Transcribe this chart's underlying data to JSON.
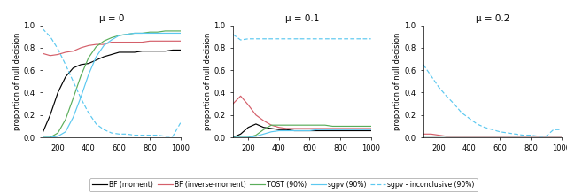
{
  "title_mu0": "μ = 0",
  "title_mu01": "μ = 0.1",
  "title_mu02": "μ = 0.2",
  "ylabel": "proportion of null decision",
  "xlim": [
    100,
    1000
  ],
  "ylim": [
    0,
    1
  ],
  "xticks": [
    200,
    400,
    600,
    800,
    1000
  ],
  "yticks": [
    0.0,
    0.2,
    0.4,
    0.6,
    0.8,
    1.0
  ],
  "colors": {
    "BF_moment": "#000000",
    "BF_inv_moment": "#d45f6a",
    "TOST": "#5aad5a",
    "sgpv": "#5bc8f0",
    "sgpv_inconclusive": "#5bc8f0"
  },
  "legend_labels": [
    "BF (moment)",
    "BF (inverse-moment)",
    "TOST (90%)",
    "sgpv (90%)",
    "sgpv - inconclusive (90%)"
  ],
  "mu0": {
    "x": [
      100,
      150,
      200,
      250,
      300,
      350,
      400,
      450,
      500,
      550,
      600,
      650,
      700,
      750,
      800,
      850,
      900,
      950,
      1000
    ],
    "BF_moment": [
      0.04,
      0.2,
      0.4,
      0.54,
      0.62,
      0.65,
      0.66,
      0.69,
      0.72,
      0.74,
      0.76,
      0.76,
      0.76,
      0.77,
      0.77,
      0.77,
      0.77,
      0.78,
      0.78
    ],
    "BF_inv_moment": [
      0.75,
      0.73,
      0.74,
      0.76,
      0.77,
      0.8,
      0.82,
      0.83,
      0.83,
      0.85,
      0.85,
      0.85,
      0.85,
      0.85,
      0.86,
      0.86,
      0.86,
      0.86,
      0.86
    ],
    "TOST": [
      0.0,
      0.0,
      0.04,
      0.16,
      0.35,
      0.55,
      0.71,
      0.81,
      0.86,
      0.89,
      0.91,
      0.92,
      0.93,
      0.93,
      0.94,
      0.94,
      0.95,
      0.95,
      0.95
    ],
    "sgpv": [
      0.0,
      0.0,
      0.01,
      0.05,
      0.18,
      0.36,
      0.56,
      0.72,
      0.82,
      0.87,
      0.91,
      0.92,
      0.93,
      0.93,
      0.93,
      0.93,
      0.93,
      0.93,
      0.93
    ],
    "sgpv_inc": [
      0.97,
      0.9,
      0.79,
      0.65,
      0.5,
      0.35,
      0.22,
      0.12,
      0.07,
      0.04,
      0.03,
      0.03,
      0.02,
      0.02,
      0.02,
      0.02,
      0.01,
      0.01,
      0.13
    ]
  },
  "mu01": {
    "x": [
      100,
      150,
      200,
      250,
      300,
      350,
      400,
      450,
      500,
      550,
      600,
      650,
      700,
      750,
      800,
      850,
      900,
      950,
      1000
    ],
    "BF_moment": [
      0.0,
      0.03,
      0.09,
      0.12,
      0.09,
      0.08,
      0.07,
      0.07,
      0.06,
      0.06,
      0.06,
      0.06,
      0.06,
      0.06,
      0.06,
      0.06,
      0.06,
      0.06,
      0.06
    ],
    "BF_inv_moment": [
      0.3,
      0.37,
      0.29,
      0.2,
      0.15,
      0.11,
      0.09,
      0.08,
      0.08,
      0.08,
      0.08,
      0.08,
      0.08,
      0.08,
      0.08,
      0.08,
      0.08,
      0.08,
      0.08
    ],
    "TOST": [
      0.0,
      0.0,
      0.0,
      0.02,
      0.07,
      0.11,
      0.11,
      0.11,
      0.11,
      0.11,
      0.11,
      0.11,
      0.11,
      0.1,
      0.1,
      0.1,
      0.1,
      0.1,
      0.1
    ],
    "sgpv": [
      0.0,
      0.0,
      0.0,
      0.01,
      0.03,
      0.05,
      0.06,
      0.06,
      0.06,
      0.06,
      0.06,
      0.07,
      0.07,
      0.07,
      0.07,
      0.07,
      0.07,
      0.07,
      0.07
    ],
    "sgpv_inc": [
      0.92,
      0.87,
      0.88,
      0.88,
      0.88,
      0.88,
      0.88,
      0.88,
      0.88,
      0.88,
      0.88,
      0.88,
      0.88,
      0.88,
      0.88,
      0.88,
      0.88,
      0.88,
      0.88
    ]
  },
  "mu02": {
    "x": [
      100,
      150,
      200,
      250,
      300,
      350,
      400,
      450,
      500,
      550,
      600,
      650,
      700,
      750,
      800,
      850,
      900,
      950,
      1000
    ],
    "BF_moment": [
      0.0,
      0.0,
      0.0,
      0.0,
      0.0,
      0.0,
      0.0,
      0.0,
      0.0,
      0.0,
      0.0,
      0.0,
      0.0,
      0.0,
      0.0,
      0.0,
      0.0,
      0.0,
      0.0
    ],
    "BF_inv_moment": [
      0.03,
      0.03,
      0.02,
      0.01,
      0.01,
      0.01,
      0.01,
      0.01,
      0.01,
      0.01,
      0.01,
      0.01,
      0.01,
      0.01,
      0.01,
      0.01,
      0.01,
      0.01,
      0.01
    ],
    "TOST": [
      0.0,
      0.0,
      0.0,
      0.0,
      0.0,
      0.0,
      0.0,
      0.0,
      0.0,
      0.0,
      0.0,
      0.0,
      0.0,
      0.0,
      0.0,
      0.0,
      0.0,
      0.0,
      0.0
    ],
    "sgpv": [
      0.0,
      0.0,
      0.0,
      0.0,
      0.0,
      0.0,
      0.0,
      0.0,
      0.0,
      0.0,
      0.0,
      0.0,
      0.0,
      0.0,
      0.0,
      0.0,
      0.0,
      0.0,
      0.0
    ],
    "sgpv_inc": [
      0.65,
      0.55,
      0.45,
      0.37,
      0.3,
      0.22,
      0.17,
      0.12,
      0.09,
      0.07,
      0.05,
      0.04,
      0.03,
      0.02,
      0.02,
      0.01,
      0.01,
      0.07,
      0.07
    ]
  }
}
